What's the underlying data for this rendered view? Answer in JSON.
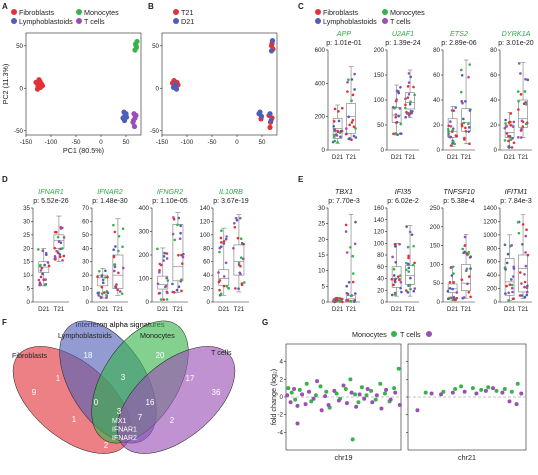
{
  "panels": {
    "A": "A",
    "B": "B",
    "C": "C",
    "D": "D",
    "E": "E",
    "F": "F",
    "G": "G"
  },
  "colors": {
    "fibroblasts": "#e0323a",
    "lymphoblastoids": "#4f5fb6",
    "monocytes": "#37b34a",
    "tcells": "#9b4fb5",
    "t21": "#e0323a",
    "d21": "#4f5fb6",
    "greentext": "#2ea84a"
  },
  "legends": {
    "A": [
      "Fibroblasts",
      "Monocytes",
      "Lymphoblastoids",
      "T cells"
    ],
    "B": [
      "T21",
      "D21"
    ],
    "C": [
      "Fibroblasts",
      "Monocytes",
      "Lymphoblastoids",
      "T cells"
    ],
    "G": [
      "Monocytes",
      "T cells"
    ]
  },
  "chart_data": [
    {
      "id": "A",
      "type": "scatter",
      "xlabel": "PC1 (80.5%)",
      "ylabel": "PC2 (11.3%)",
      "xlim": [
        -150,
        80
      ],
      "ylim": [
        -55,
        65
      ],
      "xticks": [
        "-150",
        "-100",
        "-50",
        "0",
        "50"
      ],
      "yticks": [
        "-50",
        "0",
        "50"
      ],
      "series": [
        {
          "name": "Fibroblasts",
          "points": [
            [
              -128,
              6
            ],
            [
              -125,
              4
            ],
            [
              -122,
              8
            ],
            [
              -119,
              5
            ],
            [
              -126,
              2
            ],
            [
              -117,
              3
            ],
            [
              -130,
              7
            ],
            [
              -121,
              1
            ],
            [
              -124,
              10
            ],
            [
              -127,
              -1
            ]
          ]
        },
        {
          "name": "Monocytes",
          "points": [
            [
              69,
              52
            ],
            [
              71,
              48
            ],
            [
              68,
              45
            ],
            [
              72,
              55
            ],
            [
              70,
              50
            ]
          ]
        },
        {
          "name": "Lymphoblastoids",
          "points": [
            [
              46,
              -28
            ],
            [
              48,
              -32
            ],
            [
              50,
              -30
            ],
            [
              44,
              -35
            ],
            [
              47,
              -38
            ],
            [
              51,
              -34
            ]
          ]
        },
        {
          "name": "T cells",
          "points": [
            [
              66,
              -30
            ],
            [
              68,
              -35
            ],
            [
              64,
              -40
            ],
            [
              67,
              -45
            ],
            [
              70,
              -32
            ],
            [
              65,
              -38
            ]
          ]
        }
      ]
    },
    {
      "id": "B",
      "type": "scatter",
      "xlim": [
        -150,
        80
      ],
      "ylim": [
        -55,
        65
      ],
      "xticks": [
        "-150",
        "-100",
        "-50",
        "0",
        "50"
      ],
      "yticks": [
        "-50",
        "0",
        "50"
      ],
      "series": [
        {
          "name": "T21",
          "points": [
            [
              -129,
              6
            ],
            [
              -124,
              3
            ],
            [
              -120,
              7
            ],
            [
              -118,
              4
            ],
            [
              -126,
              9
            ],
            [
              69,
              50
            ],
            [
              72,
              46
            ],
            [
              70,
              53
            ],
            [
              64,
              -32
            ],
            [
              67,
              -40
            ],
            [
              66,
              -46
            ],
            [
              70,
              -35
            ],
            [
              48,
              -36
            ]
          ]
        },
        {
          "name": "D21",
          "points": [
            [
              -127,
              1
            ],
            [
              -123,
              5
            ],
            [
              -121,
              -1
            ],
            [
              69,
              44
            ],
            [
              71,
              56
            ],
            [
              44,
              -30
            ],
            [
              46,
              -28
            ],
            [
              49,
              -33
            ],
            [
              66,
              -30
            ],
            [
              68,
              -38
            ]
          ]
        }
      ]
    },
    {
      "id": "C",
      "type": "box",
      "panels": [
        {
          "gene": "APP",
          "p": "p: 1.01e-01",
          "ylim": [
            0,
            600
          ],
          "yticks": [
            "0",
            "200",
            "400",
            "600"
          ],
          "d21": [
            40,
            70,
            130,
            190,
            270
          ],
          "t21": [
            60,
            100,
            200,
            280,
            500
          ]
        },
        {
          "gene": "U2AF1",
          "p": "p: 1.39e-24",
          "ylim": [
            0,
            200
          ],
          "yticks": [
            "0",
            "50",
            "100",
            "150",
            "200"
          ],
          "d21": [
            30,
            55,
            70,
            85,
            130
          ],
          "t21": [
            65,
            82,
            95,
            115,
            160
          ]
        },
        {
          "gene": "ETS2",
          "p": "p: 2.89e-06",
          "ylim": [
            0,
            80
          ],
          "yticks": [
            "0",
            "20",
            "40",
            "60",
            "80"
          ],
          "d21": [
            3,
            10,
            15,
            25,
            35
          ],
          "t21": [
            5,
            15,
            22,
            33,
            72
          ]
        },
        {
          "gene": "DYRK1A",
          "p": "p: 3.01e-20",
          "ylim": [
            0,
            80
          ],
          "yticks": [
            "0",
            "20",
            "40",
            "60",
            "80"
          ],
          "d21": [
            2,
            10,
            14,
            20,
            30
          ],
          "t21": [
            10,
            18,
            25,
            40,
            70
          ]
        }
      ],
      "categories": [
        "D21",
        "T21"
      ]
    },
    {
      "id": "D",
      "type": "box",
      "panels": [
        {
          "gene": "IFNAR1",
          "p": "p: 5.52e-26",
          "ylim": [
            0,
            35
          ],
          "yticks": [
            "0",
            "5",
            "10",
            "15",
            "20",
            "25",
            "30",
            "35"
          ],
          "d21": [
            6,
            11,
            13,
            15,
            20
          ],
          "t21": [
            15,
            20,
            23,
            25,
            32
          ]
        },
        {
          "gene": "IFNAR2",
          "p": "p: 1.48e-30",
          "ylim": [
            0,
            70
          ],
          "yticks": [
            "0",
            "10",
            "20",
            "30",
            "40",
            "50",
            "60",
            "70"
          ],
          "d21": [
            3,
            12,
            18,
            20,
            25
          ],
          "t21": [
            5,
            10,
            20,
            35,
            62
          ]
        },
        {
          "gene": "IFNGR2",
          "p": "p: 1.10e-05",
          "ylim": [
            0,
            400
          ],
          "yticks": [
            "0",
            "100",
            "200",
            "300",
            "400"
          ],
          "d21": [
            10,
            55,
            75,
            110,
            230
          ],
          "t21": [
            40,
            90,
            150,
            330,
            380
          ]
        },
        {
          "gene": "IL10RB",
          "p": "p: 3.67e-19",
          "ylim": [
            0,
            140
          ],
          "yticks": [
            "0",
            "20",
            "40",
            "60",
            "80",
            "100",
            "120",
            "140"
          ],
          "d21": [
            10,
            25,
            35,
            48,
            110
          ],
          "t21": [
            15,
            40,
            60,
            85,
            130
          ]
        }
      ],
      "categories": [
        "D21",
        "T21"
      ]
    },
    {
      "id": "E",
      "type": "box",
      "panels": [
        {
          "gene": "TBX1",
          "p": "p: 7.70e-3",
          "ylim": [
            0,
            30
          ],
          "yticks": [
            "0",
            "5",
            "10",
            "15",
            "20",
            "25",
            "30"
          ],
          "d21": [
            0,
            0.2,
            0.4,
            0.7,
            1.5
          ],
          "t21": [
            0,
            0.5,
            1,
            2,
            28
          ]
        },
        {
          "gene": "IFI35",
          "p": "p: 6.02e-2",
          "ylim": [
            0,
            160
          ],
          "yticks": [
            "0",
            "20",
            "40",
            "60",
            "80",
            "100",
            "120",
            "140",
            "160"
          ],
          "d21": [
            10,
            25,
            40,
            60,
            100
          ],
          "t21": [
            10,
            30,
            45,
            62,
            130
          ]
        },
        {
          "gene": "TNFSF10",
          "p": "p: 5.38e-4",
          "ylim": [
            0,
            250
          ],
          "yticks": [
            "0",
            "50",
            "100",
            "150",
            "200",
            "250"
          ],
          "d21": [
            5,
            25,
            35,
            48,
            95
          ],
          "t21": [
            10,
            30,
            50,
            100,
            180
          ]
        },
        {
          "gene": "IFITM1",
          "p": "p: 7.84e-3",
          "ylim": [
            0,
            1400
          ],
          "yticks": [
            "0",
            "200",
            "400",
            "600",
            "800",
            "1000",
            "1200",
            "1400"
          ],
          "d21": [
            20,
            100,
            300,
            650,
            1000
          ],
          "t21": [
            50,
            150,
            500,
            700,
            1300
          ]
        }
      ],
      "categories": [
        "D21",
        "T21"
      ]
    },
    {
      "id": "F",
      "type": "venn",
      "title": "Interferon alpha signatures",
      "sets": [
        "Fibroblasts",
        "Lymphoblastoids",
        "Monocytes",
        "T cells"
      ],
      "regions": {
        "fib_only": "9",
        "lym_only": "18",
        "mon_only": "20",
        "tc_only": "36",
        "fib_lym": "1",
        "lym_mon": "3",
        "mon_tc": "17",
        "fib_tc": "4",
        "lym_tc": "7",
        "fib_mon": "2",
        "fib_lym_mon": "0",
        "fib_lym_tc": "1",
        "lym_mon_tc": "16",
        "fib_mon_tc": "2",
        "all": "3"
      },
      "all_genes": [
        "MX1",
        "IFNAR1",
        "IFNAR2"
      ]
    },
    {
      "id": "G",
      "type": "scatter",
      "ylabel": "fold change (log₂)",
      "ylim": [
        -6,
        6
      ],
      "yticks": [
        "-4",
        "-2",
        "0",
        "2",
        "4"
      ],
      "panels": [
        {
          "xlabel": "chr19",
          "series": [
            {
              "name": "Monocytes",
              "points": [
                [
                  2,
                  1
                ],
                [
                  5,
                  0.5
                ],
                [
                  8,
                  -0.3
                ],
                [
                  12,
                  0.8
                ],
                [
                  18,
                  1.5
                ],
                [
                  22,
                  -0.5
                ],
                [
                  26,
                  0.2
                ],
                [
                  30,
                  1.2
                ],
                [
                  35,
                  0.6
                ],
                [
                  38,
                  -1.2
                ],
                [
                  44,
                  0.4
                ],
                [
                  47,
                  -0.2
                ],
                [
                  52,
                  0.9
                ],
                [
                  56,
                  2.0
                ],
                [
                  60,
                  0.3
                ],
                [
                  63,
                  -0.6
                ],
                [
                  66,
                  1.1
                ],
                [
                  70,
                  0.2
                ],
                [
                  74,
                  0.7
                ],
                [
                  78,
                  -0.3
                ],
                [
                  82,
                  1.5
                ],
                [
                  86,
                  0.4
                ],
                [
                  90,
                  -0.5
                ],
                [
                  94,
                  1.0
                ],
                [
                  98,
                  3.2
                ],
                [
                  58,
                  -4.8
                ]
              ]
            },
            {
              "name": "T cells",
              "points": [
                [
                  1,
                  0.2
                ],
                [
                  4,
                  -0.6
                ],
                [
                  7,
                  0.9
                ],
                [
                  10,
                  -1.0
                ],
                [
                  14,
                  0.3
                ],
                [
                  17,
                  -0.8
                ],
                [
                  20,
                  0.6
                ],
                [
                  24,
                  -0.2
                ],
                [
                  27,
                  1.8
                ],
                [
                  31,
                  -1.5
                ],
                [
                  34,
                  0.1
                ],
                [
                  37,
                  -0.9
                ],
                [
                  42,
                  0.7
                ],
                [
                  46,
                  -0.4
                ],
                [
                  50,
                  1.3
                ],
                [
                  53,
                  -0.7
                ],
                [
                  57,
                  0.5
                ],
                [
                  61,
                  -1.1
                ],
                [
                  64,
                  0.3
                ],
                [
                  68,
                  -0.2
                ],
                [
                  71,
                  0.9
                ],
                [
                  75,
                  -0.6
                ],
                [
                  79,
                  0.2
                ],
                [
                  83,
                  -1.3
                ],
                [
                  87,
                  0.8
                ],
                [
                  91,
                  -0.3
                ],
                [
                  95,
                  0.5
                ],
                [
                  99,
                  -0.9
                ],
                [
                  10,
                  -3.0
                ]
              ]
            }
          ]
        },
        {
          "xlabel": "chr21",
          "series": [
            {
              "name": "Monocytes",
              "points": [
                [
                  15,
                  0.5
                ],
                [
                  30,
                  0.6
                ],
                [
                  40,
                  0.9
                ],
                [
                  45,
                  1.2
                ],
                [
                  55,
                  1.0
                ],
                [
                  62,
                  0.8
                ],
                [
                  68,
                  1.1
                ],
                [
                  75,
                  0.7
                ],
                [
                  82,
                  0.9
                ],
                [
                  88,
                  0.6
                ],
                [
                  93,
                  1.5
                ]
              ]
            },
            {
              "name": "T cells",
              "points": [
                [
                  8,
                  -1.5
                ],
                [
                  20,
                  0.4
                ],
                [
                  28,
                  0.3
                ],
                [
                  38,
                  0.5
                ],
                [
                  48,
                  0.6
                ],
                [
                  58,
                  0.4
                ],
                [
                  66,
                  0.7
                ],
                [
                  72,
                  1.0
                ],
                [
                  80,
                  0.5
                ],
                [
                  86,
                  -0.5
                ],
                [
                  92,
                  -0.8
                ],
                [
                  96,
                  0.4
                ]
              ]
            }
          ]
        }
      ]
    }
  ]
}
